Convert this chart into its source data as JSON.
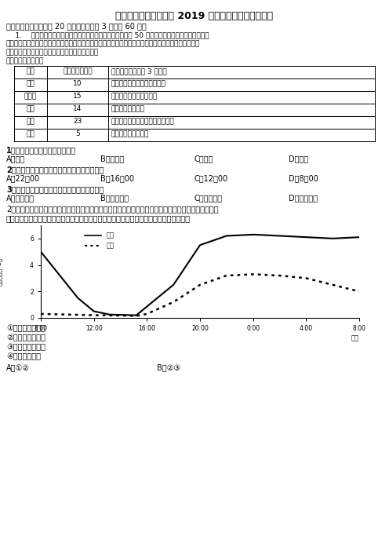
{
  "title": "浙江省嘉兴市达标名校 2019 年高考三月地理模拟试卷",
  "section1": "一、单选题（本题包括 20 个小题，每小题 3 分，共 60 分）",
  "q1_intro1": "    1.    推特作为全球性社交软件，用户广泛。研究人员从全球 50 座城市的推特数据中识别语言群体",
  "q1_intro2": "及其居住的社区（根据用户在特定时间内发表推文显示的所在地来确定），来探讨城市的融合程度与全球",
  "q1_intro3": "移民融合情况。下表为部分城市的融合程度数据。",
  "q1_intro4": "据此完成下面小题。",
  "table_headers": [
    "城市",
    "融合的语言总数",
    "融合程度最高的前 3 种语言"
  ],
  "table_rows": [
    [
      "费城",
      "10",
      "英语、葡萄牙语、埃加路族语"
    ],
    [
      "旧金山",
      "15",
      "英语、西班牙语、印尼语"
    ],
    [
      "东京",
      "14",
      "日语、汉语、德语"
    ],
    [
      "伦敦",
      "23",
      "英语、罗马尼亚语、南斯拉夫语种"
    ],
    [
      "曼谷",
      "5",
      "泰语、日语、印尼语"
    ]
  ],
  "q1_text": "1．下列城市中融合程度最高的是",
  "q1_options": [
    "A．费城",
    "B．旧金山",
    "C．东京",
    "D．伦敦"
  ],
  "q2_text": "2．研究人员获取用户居住地信息的最佳时间是",
  "q2_options": [
    "A．22：00",
    "B．16：00",
    "C．12：00",
    "D．8：00"
  ],
  "q3_text": "3．影响城市的语言融合程度排名的主要原因是",
  "q3_options": [
    "A．经济水平",
    "B．文化认同",
    "C．地理位置",
    "D．人群数量"
  ],
  "q4_intro1": "2．城市热岛效应是指一个城市城区的气温高于周围地区的现象，一般用两个代表性测点的气温差值（即",
  "q4_intro2": "热岛强度表示。下图显示的是某城市热岛效应日和年变化规律。由图可见该城市的热岛效应",
  "chart_xticks": [
    "8:00",
    "12:00",
    "16:00",
    "20:00",
    "0:00",
    "4:00",
    "8:00"
  ],
  "opt1": "①夏季比冬季明显",
  "opt2": "②冬季比夏季明显",
  "opt3": "③黑夜比白昼明显",
  "opt4": "④白昼没有表现",
  "final_q_a": "A．①②",
  "final_q_b": "B．②③",
  "bg_color": "#ffffff",
  "text_color": "#000000"
}
